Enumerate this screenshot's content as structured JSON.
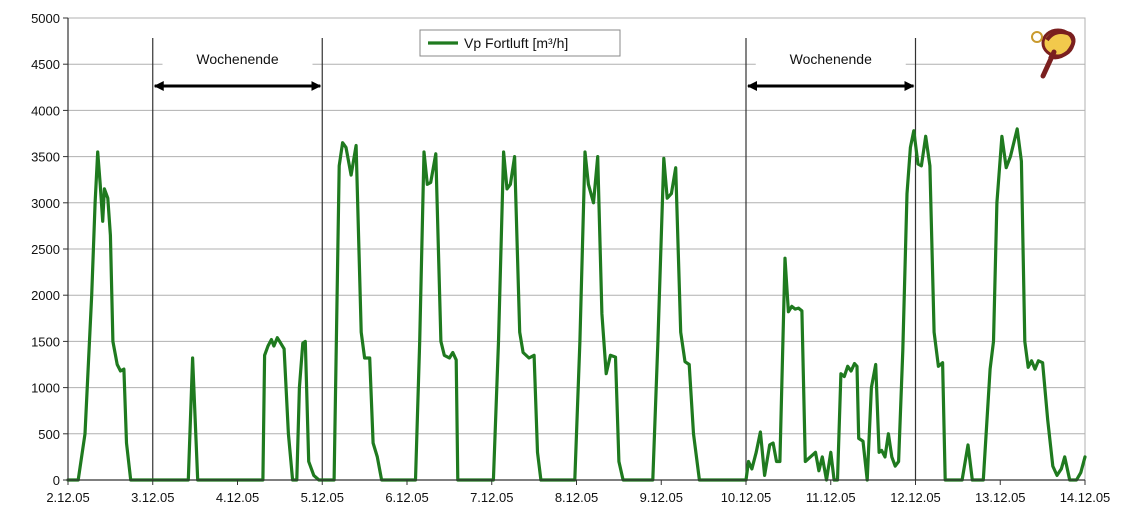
{
  "chart_data": {
    "type": "line",
    "title": "",
    "xlabel": "",
    "ylabel": "",
    "ylim": [
      0,
      5000
    ],
    "xlim": [
      0,
      12
    ],
    "y_ticks": [
      0,
      500,
      1000,
      1500,
      2000,
      2500,
      3000,
      3500,
      4000,
      4500,
      5000
    ],
    "x_tick_labels": [
      "2.12.05",
      "3.12.05",
      "4.12.05",
      "5.12.05",
      "6.12.05",
      "7.12.05",
      "8.12.05",
      "9.12.05",
      "10.12.05",
      "11.12.05",
      "12.12.05",
      "13.12.05",
      "14.12.05"
    ],
    "grid": true,
    "legend_position": "top-center",
    "colors": {
      "series": "#1f7a1f",
      "grid": "#b0b0b0",
      "marker_lines": "#333333"
    },
    "markers": [
      {
        "label": "Wochenende",
        "start": 1,
        "end": 3
      },
      {
        "label": "Wochenende",
        "start": 8,
        "end": 10
      }
    ],
    "logo_icon": "pv-logo-icon",
    "series": [
      {
        "name": "Vp Fortluft [m³/h]",
        "points": [
          [
            0,
            0
          ],
          [
            0.12,
            0
          ],
          [
            0.2,
            500
          ],
          [
            0.28,
            2000
          ],
          [
            0.32,
            3000
          ],
          [
            0.35,
            3550
          ],
          [
            0.38,
            3200
          ],
          [
            0.41,
            2800
          ],
          [
            0.43,
            3150
          ],
          [
            0.47,
            3050
          ],
          [
            0.5,
            2650
          ],
          [
            0.53,
            1500
          ],
          [
            0.58,
            1250
          ],
          [
            0.62,
            1180
          ],
          [
            0.66,
            1200
          ],
          [
            0.69,
            400
          ],
          [
            0.74,
            0
          ],
          [
            1,
            0
          ],
          [
            1.42,
            0
          ],
          [
            1.47,
            1320
          ],
          [
            1.53,
            0
          ],
          [
            1.6,
            0
          ],
          [
            2.3,
            0
          ],
          [
            2.32,
            1350
          ],
          [
            2.36,
            1450
          ],
          [
            2.4,
            1520
          ],
          [
            2.43,
            1450
          ],
          [
            2.47,
            1540
          ],
          [
            2.51,
            1480
          ],
          [
            2.55,
            1420
          ],
          [
            2.6,
            500
          ],
          [
            2.65,
            0
          ],
          [
            2.7,
            0
          ],
          [
            2.73,
            1000
          ],
          [
            2.77,
            1480
          ],
          [
            2.8,
            1500
          ],
          [
            2.84,
            200
          ],
          [
            2.9,
            50
          ],
          [
            2.96,
            0
          ],
          [
            3,
            0
          ],
          [
            3.14,
            0
          ],
          [
            3.2,
            3400
          ],
          [
            3.24,
            3650
          ],
          [
            3.28,
            3600
          ],
          [
            3.34,
            3300
          ],
          [
            3.4,
            3620
          ],
          [
            3.46,
            1600
          ],
          [
            3.5,
            1320
          ],
          [
            3.56,
            1320
          ],
          [
            3.6,
            400
          ],
          [
            3.65,
            250
          ],
          [
            3.7,
            0
          ],
          [
            4.1,
            0
          ],
          [
            4.15,
            1500
          ],
          [
            4.2,
            3550
          ],
          [
            4.24,
            3200
          ],
          [
            4.28,
            3220
          ],
          [
            4.34,
            3530
          ],
          [
            4.4,
            1500
          ],
          [
            4.44,
            1350
          ],
          [
            4.5,
            1320
          ],
          [
            4.54,
            1380
          ],
          [
            4.58,
            1300
          ],
          [
            4.6,
            0
          ],
          [
            5.02,
            0
          ],
          [
            5.08,
            1500
          ],
          [
            5.14,
            3550
          ],
          [
            5.18,
            3150
          ],
          [
            5.22,
            3200
          ],
          [
            5.27,
            3500
          ],
          [
            5.33,
            1600
          ],
          [
            5.37,
            1380
          ],
          [
            5.44,
            1320
          ],
          [
            5.5,
            1350
          ],
          [
            5.54,
            300
          ],
          [
            5.58,
            0
          ],
          [
            5.98,
            0
          ],
          [
            6.04,
            1500
          ],
          [
            6.1,
            3550
          ],
          [
            6.14,
            3200
          ],
          [
            6.2,
            3000
          ],
          [
            6.25,
            3500
          ],
          [
            6.3,
            1800
          ],
          [
            6.35,
            1150
          ],
          [
            6.4,
            1350
          ],
          [
            6.46,
            1330
          ],
          [
            6.5,
            200
          ],
          [
            6.55,
            0
          ],
          [
            6.9,
            0
          ],
          [
            6.96,
            1500
          ],
          [
            7.03,
            3480
          ],
          [
            7.07,
            3050
          ],
          [
            7.12,
            3100
          ],
          [
            7.17,
            3380
          ],
          [
            7.23,
            1600
          ],
          [
            7.28,
            1280
          ],
          [
            7.33,
            1250
          ],
          [
            7.38,
            500
          ],
          [
            7.45,
            0
          ],
          [
            7.5,
            0
          ],
          [
            8,
            0
          ],
          [
            8.03,
            200
          ],
          [
            8.07,
            120
          ],
          [
            8.12,
            300
          ],
          [
            8.17,
            520
          ],
          [
            8.22,
            50
          ],
          [
            8.28,
            380
          ],
          [
            8.32,
            400
          ],
          [
            8.36,
            200
          ],
          [
            8.4,
            200
          ],
          [
            8.46,
            2400
          ],
          [
            8.5,
            1820
          ],
          [
            8.54,
            1880
          ],
          [
            8.58,
            1850
          ],
          [
            8.62,
            1860
          ],
          [
            8.66,
            1830
          ],
          [
            8.7,
            200
          ],
          [
            8.76,
            250
          ],
          [
            8.82,
            300
          ],
          [
            8.86,
            100
          ],
          [
            8.9,
            250
          ],
          [
            8.95,
            0
          ],
          [
            9,
            300
          ],
          [
            9.04,
            0
          ],
          [
            9.08,
            0
          ],
          [
            9.12,
            1150
          ],
          [
            9.16,
            1120
          ],
          [
            9.2,
            1230
          ],
          [
            9.24,
            1180
          ],
          [
            9.28,
            1260
          ],
          [
            9.31,
            1230
          ],
          [
            9.33,
            450
          ],
          [
            9.38,
            420
          ],
          [
            9.43,
            0
          ],
          [
            9.48,
            1000
          ],
          [
            9.53,
            1250
          ],
          [
            9.57,
            300
          ],
          [
            9.6,
            320
          ],
          [
            9.64,
            250
          ],
          [
            9.68,
            500
          ],
          [
            9.72,
            250
          ],
          [
            9.76,
            150
          ],
          [
            9.8,
            200
          ],
          [
            9.85,
            1400
          ],
          [
            9.9,
            3100
          ],
          [
            9.94,
            3600
          ],
          [
            9.98,
            3780
          ],
          [
            10.03,
            3420
          ],
          [
            10.07,
            3400
          ],
          [
            10.12,
            3720
          ],
          [
            10.17,
            3400
          ],
          [
            10.22,
            1600
          ],
          [
            10.27,
            1230
          ],
          [
            10.32,
            1270
          ],
          [
            10.35,
            0
          ],
          [
            10.4,
            0
          ],
          [
            10.55,
            0
          ],
          [
            10.62,
            380
          ],
          [
            10.67,
            0
          ],
          [
            10.8,
            0
          ],
          [
            10.88,
            1200
          ],
          [
            10.92,
            1500
          ],
          [
            10.96,
            3000
          ],
          [
            11.02,
            3720
          ],
          [
            11.07,
            3380
          ],
          [
            11.12,
            3500
          ],
          [
            11.2,
            3800
          ],
          [
            11.25,
            3450
          ],
          [
            11.29,
            1500
          ],
          [
            11.33,
            1220
          ],
          [
            11.37,
            1290
          ],
          [
            11.41,
            1200
          ],
          [
            11.45,
            1290
          ],
          [
            11.5,
            1270
          ],
          [
            11.56,
            650
          ],
          [
            11.62,
            150
          ],
          [
            11.67,
            50
          ],
          [
            11.72,
            120
          ],
          [
            11.76,
            250
          ],
          [
            11.82,
            0
          ],
          [
            11.9,
            0
          ],
          [
            11.95,
            80
          ],
          [
            12,
            250
          ]
        ]
      }
    ]
  }
}
